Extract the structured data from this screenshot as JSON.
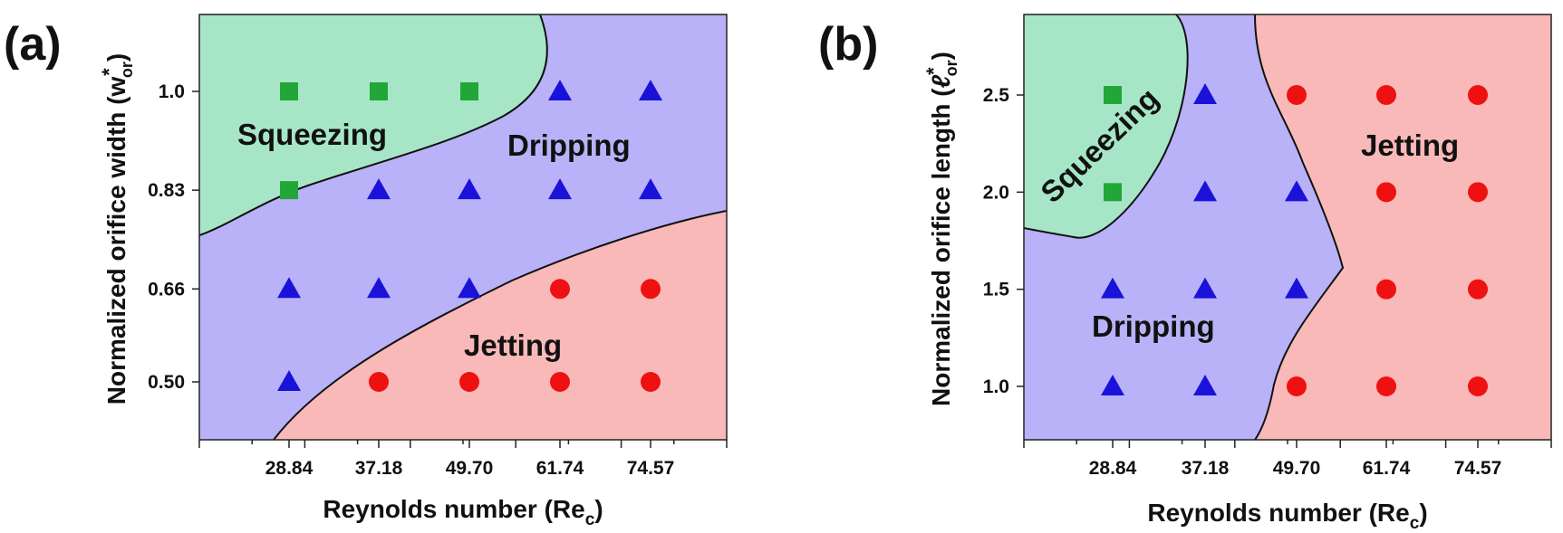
{
  "colors": {
    "squeezing_fill": "#a6e6c6",
    "dripping_fill": "#b9b2f8",
    "jetting_fill": "#f8b9b8",
    "squeezing_marker": "#22a638",
    "dripping_marker": "#1a12d9",
    "jetting_marker": "#ee1111"
  },
  "chart_data": [
    {
      "type": "scatter",
      "panel_label": "(a)",
      "xlabel": "Reynolds number (Re",
      "xlabel_sub": "c",
      "xlabel_close": ")",
      "ylabel": "Normalized orifice width (w",
      "ylabel_sup": "*",
      "ylabel_sub": "or",
      "ylabel_close": ")",
      "x_categories": [
        "28.84",
        "37.18",
        "49.70",
        "61.74",
        "74.57"
      ],
      "y_ticks": [
        "0.50",
        "0.66",
        "0.83",
        "1.0"
      ],
      "regions": [
        {
          "name": "Squeezing"
        },
        {
          "name": "Dripping"
        },
        {
          "name": "Jetting"
        }
      ],
      "series": [
        {
          "name": "Squeezing",
          "marker": "square",
          "points": [
            [
              28.84,
              1.0
            ],
            [
              37.18,
              1.0
            ],
            [
              49.7,
              1.0
            ],
            [
              28.84,
              0.83
            ]
          ]
        },
        {
          "name": "Dripping",
          "marker": "triangle",
          "points": [
            [
              61.74,
              1.0
            ],
            [
              74.57,
              1.0
            ],
            [
              37.18,
              0.83
            ],
            [
              49.7,
              0.83
            ],
            [
              61.74,
              0.83
            ],
            [
              74.57,
              0.83
            ],
            [
              28.84,
              0.66
            ],
            [
              37.18,
              0.66
            ],
            [
              49.7,
              0.66
            ],
            [
              28.84,
              0.5
            ]
          ]
        },
        {
          "name": "Jetting",
          "marker": "circle",
          "points": [
            [
              61.74,
              0.66
            ],
            [
              74.57,
              0.66
            ],
            [
              37.18,
              0.5
            ],
            [
              49.7,
              0.5
            ],
            [
              61.74,
              0.5
            ],
            [
              74.57,
              0.5
            ]
          ]
        }
      ]
    },
    {
      "type": "scatter",
      "panel_label": "(b)",
      "xlabel": "Reynolds number (Re",
      "xlabel_sub": "c",
      "xlabel_close": ")",
      "ylabel": "Normalized orifice length (",
      "ylabel_symbol": "ℓ",
      "ylabel_sup": "*",
      "ylabel_sub": "or",
      "ylabel_close": ")",
      "x_categories": [
        "28.84",
        "37.18",
        "49.70",
        "61.74",
        "74.57"
      ],
      "y_ticks": [
        "1.0",
        "1.5",
        "2.0",
        "2.5"
      ],
      "regions": [
        {
          "name": "Squeezing"
        },
        {
          "name": "Dripping"
        },
        {
          "name": "Jetting"
        }
      ],
      "series": [
        {
          "name": "Squeezing",
          "marker": "square",
          "points": [
            [
              28.84,
              2.5
            ],
            [
              28.84,
              2.0
            ]
          ]
        },
        {
          "name": "Dripping",
          "marker": "triangle",
          "points": [
            [
              37.18,
              2.5
            ],
            [
              37.18,
              2.0
            ],
            [
              49.7,
              2.0
            ],
            [
              28.84,
              1.5
            ],
            [
              37.18,
              1.5
            ],
            [
              49.7,
              1.5
            ],
            [
              28.84,
              1.0
            ],
            [
              37.18,
              1.0
            ]
          ]
        },
        {
          "name": "Jetting",
          "marker": "circle",
          "points": [
            [
              49.7,
              2.5
            ],
            [
              61.74,
              2.5
            ],
            [
              74.57,
              2.5
            ],
            [
              61.74,
              2.0
            ],
            [
              74.57,
              2.0
            ],
            [
              61.74,
              1.5
            ],
            [
              74.57,
              1.5
            ],
            [
              49.7,
              1.0
            ],
            [
              61.74,
              1.0
            ],
            [
              74.57,
              1.0
            ]
          ]
        }
      ]
    }
  ]
}
